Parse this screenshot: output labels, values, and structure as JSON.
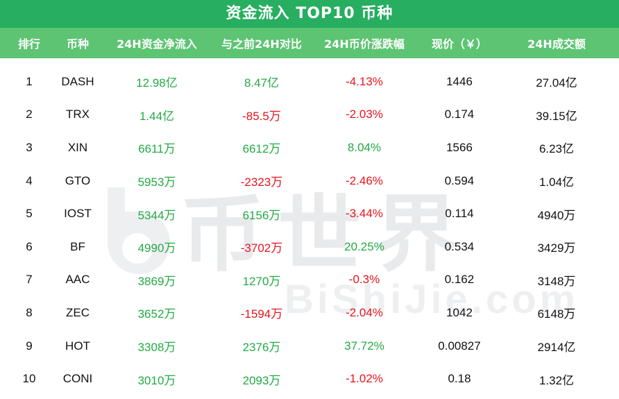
{
  "title": "资金流入 TOP10 币种",
  "headers": [
    "排行",
    "币种",
    "24H资金净流入",
    "与之前24H对比",
    "24H币价涨跌幅",
    "现价（￥）",
    "24H成交额"
  ],
  "watermark": {
    "cn": "币世界",
    "en": "BiShiJie.com"
  },
  "colors": {
    "title_bg": "#27ae60",
    "header_bg": "#5cc472",
    "positive": "#22aa44",
    "negative": "#e8141c"
  },
  "rows": [
    {
      "rank": "1",
      "coin": "DASH",
      "inflow": "12.98亿",
      "compare": "8.47亿",
      "change": "-4.13%",
      "price": "1446",
      "volume": "27.04亿"
    },
    {
      "rank": "2",
      "coin": "TRX",
      "inflow": "1.44亿",
      "compare": "-85.5万",
      "change": "-2.03%",
      "price": "0.174",
      "volume": "39.15亿"
    },
    {
      "rank": "3",
      "coin": "XIN",
      "inflow": "6611万",
      "compare": "6612万",
      "change": "8.04%",
      "price": "1566",
      "volume": "6.23亿"
    },
    {
      "rank": "4",
      "coin": "GTO",
      "inflow": "5953万",
      "compare": "-2323万",
      "change": "-2.46%",
      "price": "0.594",
      "volume": "1.04亿"
    },
    {
      "rank": "5",
      "coin": "IOST",
      "inflow": "5344万",
      "compare": "6156万",
      "change": "-3.44%",
      "price": "0.114",
      "volume": "4940万"
    },
    {
      "rank": "6",
      "coin": "BF",
      "inflow": "4990万",
      "compare": "-3702万",
      "change": "20.25%",
      "price": "0.534",
      "volume": "3429万"
    },
    {
      "rank": "7",
      "coin": "AAC",
      "inflow": "3869万",
      "compare": "1270万",
      "change": "-0.3%",
      "price": "0.162",
      "volume": "3148万"
    },
    {
      "rank": "8",
      "coin": "ZEC",
      "inflow": "3652万",
      "compare": "-1594万",
      "change": "-2.04%",
      "price": "1042",
      "volume": "6148万"
    },
    {
      "rank": "9",
      "coin": "HOT",
      "inflow": "3308万",
      "compare": "2376万",
      "change": "37.72%",
      "price": "0.00827",
      "volume": "2914亿"
    },
    {
      "rank": "10",
      "coin": "CONI",
      "inflow": "3010万",
      "compare": "2093万",
      "change": "-1.02%",
      "price": "0.18",
      "volume": "1.32亿"
    }
  ]
}
